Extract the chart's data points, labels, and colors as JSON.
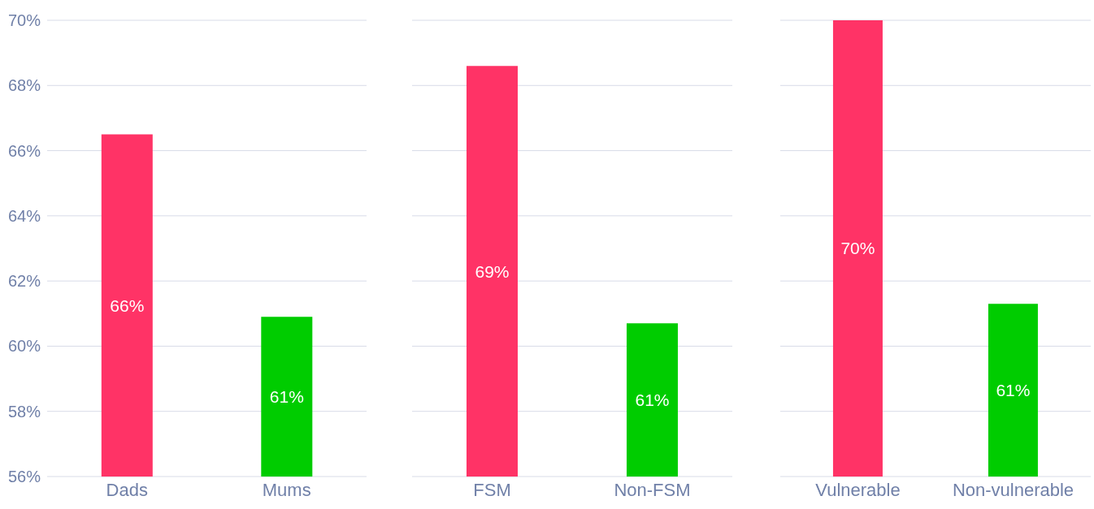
{
  "chart_data": [
    {
      "type": "bar",
      "categories": [
        "Dads",
        "Mums"
      ],
      "values": [
        66.5,
        60.9
      ],
      "colors": [
        "#ff3366",
        "#00cc00"
      ],
      "value_labels": [
        "66%",
        "61%"
      ],
      "ylim": [
        56,
        70
      ],
      "yticks": [
        {
          "value": 56,
          "label": "56%"
        },
        {
          "value": 58,
          "label": "58%"
        },
        {
          "value": 60,
          "label": "60%"
        },
        {
          "value": 62,
          "label": "62%"
        },
        {
          "value": 64,
          "label": "64%"
        },
        {
          "value": 66,
          "label": "66%"
        },
        {
          "value": 68,
          "label": "68%"
        },
        {
          "value": 70,
          "label": "70%"
        }
      ],
      "grid": "y"
    },
    {
      "type": "bar",
      "categories": [
        "FSM",
        "Non-FSM"
      ],
      "values": [
        68.6,
        60.7
      ],
      "colors": [
        "#ff3366",
        "#00cc00"
      ],
      "value_labels": [
        "69%",
        "61%"
      ],
      "ylim": [
        56,
        70
      ],
      "yticks": [
        {
          "value": 56,
          "label": null
        },
        {
          "value": 58,
          "label": null
        },
        {
          "value": 60,
          "label": null
        },
        {
          "value": 62,
          "label": null
        },
        {
          "value": 64,
          "label": null
        },
        {
          "value": 66,
          "label": null
        },
        {
          "value": 68,
          "label": null
        },
        {
          "value": 70,
          "label": null
        }
      ],
      "grid": "y",
      "tick_labels": "x"
    },
    {
      "type": "bar",
      "categories": [
        "Vulnerable",
        "Non-vulnerable"
      ],
      "values": [
        70,
        61.3
      ],
      "colors": [
        "#ff3366",
        "#00cc00"
      ],
      "value_labels": [
        "70%",
        "61%"
      ],
      "ylim": [
        56,
        70
      ],
      "yticks": [
        {
          "value": 56,
          "label": null
        },
        {
          "value": 58,
          "label": null
        },
        {
          "value": 60,
          "label": null
        },
        {
          "value": 62,
          "label": null
        },
        {
          "value": 64,
          "label": null
        },
        {
          "value": 66,
          "label": null
        },
        {
          "value": 68,
          "label": null
        },
        {
          "value": 70,
          "label": null
        }
      ],
      "grid": "y",
      "tick_labels": "x"
    }
  ]
}
